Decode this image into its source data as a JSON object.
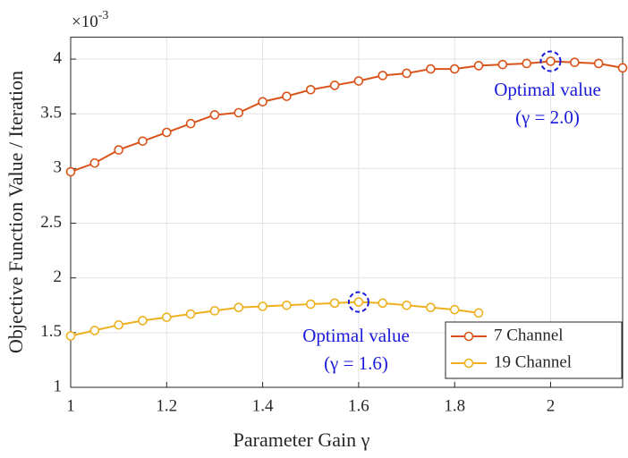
{
  "chart_data": {
    "type": "line",
    "x_label": "Parameter Gain γ",
    "y_label": "Objective Function Value / Iteration",
    "y_multiplier": {
      "base": "×10",
      "exponent": "-3"
    },
    "x": [
      1,
      1.05,
      1.1,
      1.15,
      1.2,
      1.25,
      1.3,
      1.35,
      1.4,
      1.45,
      1.5,
      1.55,
      1.6,
      1.65,
      1.7,
      1.75,
      1.8,
      1.85,
      1.9,
      1.95,
      2.0,
      2.05,
      2.1,
      2.15
    ],
    "series": [
      {
        "name": "7 Channel",
        "color": "#d95319",
        "values": [
          2.97,
          3.05,
          3.17,
          3.25,
          3.33,
          3.41,
          3.49,
          3.51,
          3.61,
          3.66,
          3.72,
          3.76,
          3.8,
          3.85,
          3.87,
          3.91,
          3.91,
          3.94,
          3.95,
          3.96,
          3.98,
          3.97,
          3.96,
          3.92
        ]
      },
      {
        "name": "19 Channel",
        "color": "#edb120",
        "values": [
          1.47,
          1.52,
          1.57,
          1.61,
          1.64,
          1.67,
          1.7,
          1.73,
          1.74,
          1.75,
          1.76,
          1.77,
          1.78,
          1.77,
          1.75,
          1.73,
          1.71,
          1.68,
          null,
          null,
          null,
          null,
          null,
          null
        ]
      }
    ],
    "annotations": [
      {
        "lines": [
          "Optimal value",
          "(γ = 2.0)"
        ]
      },
      {
        "lines": [
          "Optimal value",
          "(γ = 1.6)"
        ]
      }
    ],
    "xlim": [
      1,
      2.15
    ],
    "xticks": [
      1,
      1.2,
      1.4,
      1.6,
      1.8,
      2
    ],
    "ylim": [
      1,
      4.2
    ],
    "yticks": [
      1,
      1.5,
      2,
      2.5,
      3,
      3.5,
      4
    ],
    "grid": true,
    "legend": "lower-right"
  }
}
